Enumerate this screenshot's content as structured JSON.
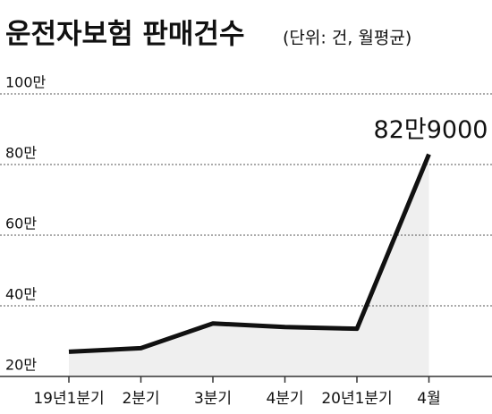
{
  "chart_data": {
    "type": "line",
    "title": "운전자보험 판매건수",
    "subtitle": "(단위: 건, 월평균)",
    "categories": [
      "19년1분기",
      "2분기",
      "3분기",
      "4분기",
      "20년1분기",
      "4월"
    ],
    "values": [
      270000,
      280000,
      350000,
      340000,
      335000,
      829000
    ],
    "value_labels": [
      null,
      null,
      null,
      null,
      null,
      "82만9000"
    ],
    "color": "#111111",
    "fill": "#efefef",
    "ylim": [
      200000,
      1000000
    ],
    "yticks": [
      {
        "value": 200000,
        "label": "20만"
      },
      {
        "value": 400000,
        "label": "40만"
      },
      {
        "value": 600000,
        "label": "60만"
      },
      {
        "value": 800000,
        "label": "80만"
      },
      {
        "value": 1000000,
        "label": "100만"
      }
    ],
    "grid": true
  }
}
